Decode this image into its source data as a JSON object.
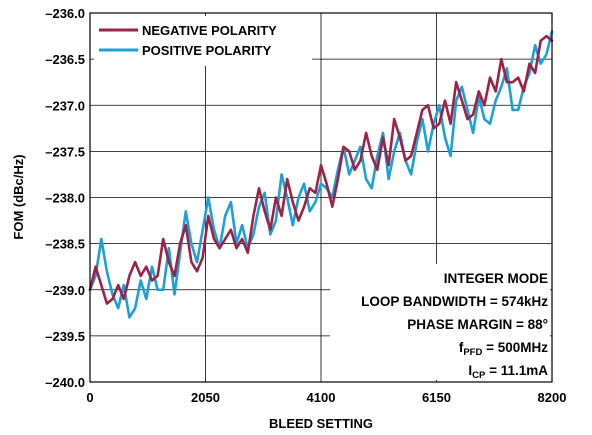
{
  "chart_data": {
    "type": "line",
    "xlabel": "BLEED SETTING",
    "ylabel": "FOM (dBc/Hz)",
    "xlim": [
      0,
      8200
    ],
    "ylim": [
      -240.0,
      -236.0
    ],
    "x_ticks": [
      "0",
      "2050",
      "4100",
      "6150",
      "8200"
    ],
    "y_ticks": [
      "–236.0",
      "–236.5",
      "–237.0",
      "–237.5",
      "–238.0",
      "–238.5",
      "–239.0",
      "–239.5",
      "–240.0"
    ],
    "grid": "on",
    "legend_position": "top-left",
    "series": [
      {
        "name": "NEGATIVE POLARITY",
        "color": "#9b2346",
        "x": [
          0,
          100,
          200,
          300,
          400,
          500,
          600,
          700,
          800,
          900,
          1000,
          1100,
          1200,
          1300,
          1400,
          1500,
          1600,
          1700,
          1800,
          1900,
          2000,
          2100,
          2200,
          2300,
          2400,
          2500,
          2600,
          2700,
          2800,
          2900,
          3000,
          3100,
          3200,
          3300,
          3400,
          3500,
          3600,
          3700,
          3800,
          3900,
          4000,
          4100,
          4200,
          4300,
          4400,
          4500,
          4600,
          4700,
          4800,
          4900,
          5000,
          5100,
          5200,
          5300,
          5400,
          5500,
          5600,
          5700,
          5800,
          5900,
          6000,
          6100,
          6200,
          6300,
          6400,
          6500,
          6600,
          6700,
          6800,
          6900,
          7000,
          7100,
          7200,
          7300,
          7400,
          7500,
          7600,
          7700,
          7800,
          7900,
          8000,
          8100,
          8200
        ],
        "values": [
          -239.0,
          -238.75,
          -238.95,
          -239.15,
          -239.1,
          -238.95,
          -239.1,
          -238.85,
          -238.7,
          -238.85,
          -238.75,
          -238.9,
          -238.85,
          -238.45,
          -238.7,
          -238.85,
          -238.5,
          -238.3,
          -238.7,
          -238.8,
          -238.65,
          -238.2,
          -238.45,
          -238.55,
          -238.45,
          -238.35,
          -238.55,
          -238.45,
          -238.6,
          -238.2,
          -237.9,
          -238.15,
          -238.35,
          -238.0,
          -238.2,
          -237.8,
          -238.05,
          -238.25,
          -238.1,
          -237.9,
          -237.95,
          -237.65,
          -237.85,
          -238.1,
          -237.8,
          -237.45,
          -237.5,
          -237.7,
          -237.6,
          -237.3,
          -237.55,
          -237.7,
          -237.35,
          -237.65,
          -237.15,
          -237.35,
          -237.6,
          -237.55,
          -237.3,
          -237.05,
          -237.0,
          -237.25,
          -237.2,
          -236.95,
          -237.2,
          -236.75,
          -236.95,
          -237.15,
          -237.1,
          -236.85,
          -237.0,
          -236.7,
          -236.85,
          -236.5,
          -236.75,
          -236.75,
          -236.7,
          -236.85,
          -236.55,
          -236.65,
          -236.3,
          -236.25,
          -236.3
        ]
      },
      {
        "name": "POSITIVE POLARITY",
        "color": "#1e9fd6",
        "x": [
          0,
          100,
          200,
          300,
          400,
          500,
          600,
          700,
          800,
          900,
          1000,
          1100,
          1200,
          1300,
          1400,
          1500,
          1600,
          1700,
          1800,
          1900,
          2000,
          2100,
          2200,
          2300,
          2400,
          2500,
          2600,
          2700,
          2800,
          2900,
          3000,
          3100,
          3200,
          3300,
          3400,
          3500,
          3600,
          3700,
          3800,
          3900,
          4000,
          4100,
          4200,
          4300,
          4400,
          4500,
          4600,
          4700,
          4800,
          4900,
          5000,
          5100,
          5200,
          5300,
          5400,
          5500,
          5600,
          5700,
          5800,
          5900,
          6000,
          6100,
          6200,
          6300,
          6400,
          6500,
          6600,
          6700,
          6800,
          6900,
          7000,
          7100,
          7200,
          7300,
          7400,
          7500,
          7600,
          7700,
          7800,
          7900,
          8000,
          8100,
          8200
        ],
        "values": [
          -239.0,
          -238.85,
          -238.45,
          -238.8,
          -239.05,
          -239.2,
          -238.95,
          -239.3,
          -239.2,
          -238.9,
          -239.1,
          -238.75,
          -239.0,
          -239.0,
          -238.55,
          -239.05,
          -238.6,
          -238.15,
          -238.5,
          -238.7,
          -238.35,
          -238.0,
          -238.35,
          -238.55,
          -238.2,
          -238.05,
          -238.5,
          -238.3,
          -238.55,
          -238.4,
          -238.1,
          -237.95,
          -238.4,
          -238.25,
          -237.75,
          -238.0,
          -238.3,
          -238.0,
          -237.85,
          -238.15,
          -238.05,
          -237.85,
          -237.9,
          -238.0,
          -237.7,
          -237.45,
          -237.75,
          -237.6,
          -237.45,
          -237.8,
          -237.9,
          -237.55,
          -237.3,
          -237.8,
          -237.5,
          -237.3,
          -237.6,
          -237.75,
          -237.4,
          -237.15,
          -237.5,
          -237.2,
          -237.0,
          -237.35,
          -237.55,
          -236.95,
          -236.8,
          -237.05,
          -237.3,
          -236.9,
          -237.15,
          -237.2,
          -236.95,
          -236.8,
          -236.6,
          -237.05,
          -237.05,
          -236.8,
          -236.65,
          -236.35,
          -236.55,
          -236.45,
          -236.2
        ]
      }
    ],
    "annotations": {
      "mode": "INTEGER MODE",
      "bandwidth": "LOOP BANDWIDTH = 574kHz",
      "phase_margin": "PHASE MARGIN = 88°",
      "fpfd": {
        "main": "f",
        "sub": "PFD",
        "rest": " = 500MHz"
      },
      "icp": {
        "main": "I",
        "sub": "CP",
        "rest": " = 11.1mA"
      }
    }
  }
}
